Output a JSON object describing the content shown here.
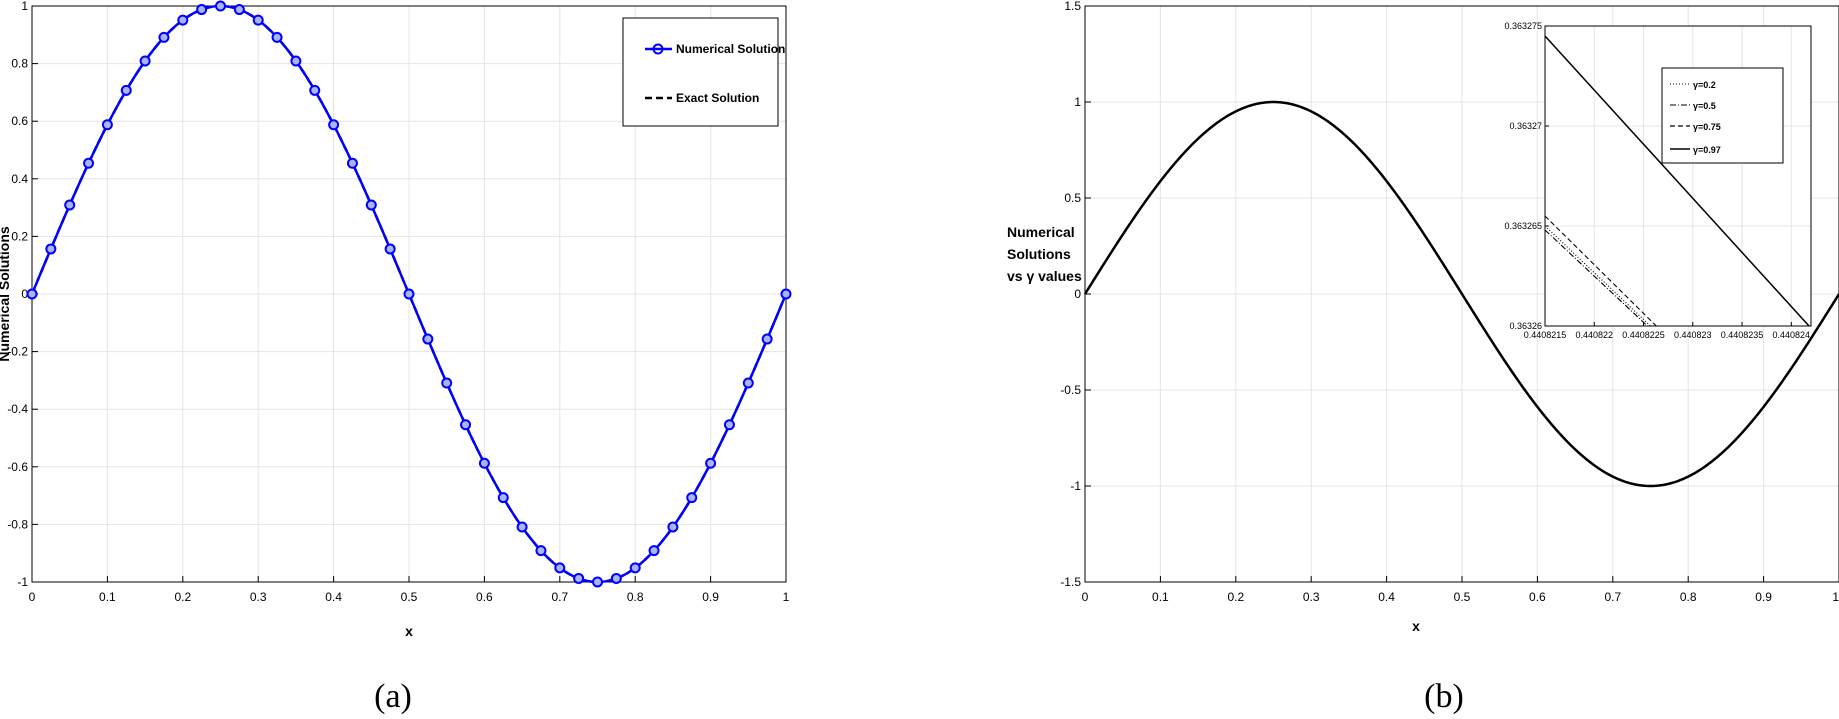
{
  "chart_data": [
    {
      "id": "a",
      "type": "line",
      "caption": "(a)",
      "xlabel": "x",
      "ylabel": "Numerical Solutions",
      "xlim": [
        0,
        1
      ],
      "ylim": [
        -1,
        1
      ],
      "xticks": [
        "0",
        "0.1",
        "0.2",
        "0.3",
        "0.4",
        "0.5",
        "0.6",
        "0.7",
        "0.8",
        "0.9",
        "1"
      ],
      "yticks": [
        "-1",
        "-0.8",
        "-0.6",
        "-0.4",
        "-0.2",
        "0",
        "0.2",
        "0.4",
        "0.6",
        "0.8",
        "1"
      ],
      "grid": true,
      "legend_position": "top-right",
      "function": "sin(2*pi*x)",
      "marker_step": 0.025,
      "series": [
        {
          "name": "Numerical Solution",
          "color": "#0000ff",
          "style": "solid-with-circle-markers"
        },
        {
          "name": "Exact Solution",
          "color": "#000000",
          "style": "dashed"
        }
      ]
    },
    {
      "id": "b",
      "type": "line",
      "caption": "(b)",
      "xlabel": "x",
      "ylabel_lines": [
        "Numerical",
        "Solutions",
        "vs γ values"
      ],
      "xlim": [
        0,
        1
      ],
      "ylim": [
        -1.5,
        1.5
      ],
      "xticks": [
        "0",
        "0.1",
        "0.2",
        "0.3",
        "0.4",
        "0.5",
        "0.6",
        "0.7",
        "0.8",
        "0.9",
        "1"
      ],
      "yticks": [
        "-1.5",
        "-1",
        "-0.5",
        "0",
        "0.5",
        "1",
        "1.5"
      ],
      "grid": true,
      "function": "sin(2*pi*x)",
      "series": [
        {
          "name": "γ=0.2",
          "color": "#000000",
          "style": "dotted"
        },
        {
          "name": "γ=0.5",
          "color": "#000000",
          "style": "dashdot"
        },
        {
          "name": "γ=0.75",
          "color": "#000000",
          "style": "dashed"
        },
        {
          "name": "γ=0.97",
          "color": "#000000",
          "style": "solid"
        }
      ],
      "inset": {
        "type": "line",
        "xlim": [
          0.4408215,
          0.4408242
        ],
        "ylim": [
          0.36326,
          0.363275
        ],
        "xticks": [
          {
            "value": 0.4408215,
            "label": "0.4408215"
          },
          {
            "value": 0.440822,
            "label": "0.440822"
          },
          {
            "value": 0.4408225,
            "label": "0.4408225"
          },
          {
            "value": 0.440823,
            "label": "0.440823"
          },
          {
            "value": 0.4408235,
            "label": "0.4408235"
          },
          {
            "value": 0.440824,
            "label": "0.440824"
          }
        ],
        "yticks": [
          {
            "value": 0.36326,
            "label": "0.36326"
          },
          {
            "value": 0.363265,
            "label": "0.363265"
          },
          {
            "value": 0.36327,
            "label": "0.36327"
          },
          {
            "value": 0.363275,
            "label": "0.363275"
          }
        ],
        "legend_position": "top-right",
        "lines": [
          {
            "name": "γ=0.2",
            "style": "dotted",
            "x": [
              0.4408215,
              0.44082257
            ],
            "y": [
              0.363265,
              0.36326
            ]
          },
          {
            "name": "γ=0.5",
            "style": "dashdot",
            "x": [
              0.4408215,
              0.44082254
            ],
            "y": [
              0.3632648,
              0.36326
            ]
          },
          {
            "name": "γ=0.75",
            "style": "dashed",
            "x": [
              0.4408215,
              0.44082263
            ],
            "y": [
              0.3632655,
              0.36326
            ]
          },
          {
            "name": "γ=0.97",
            "style": "solid",
            "x": [
              0.4408215,
              0.44082418
            ],
            "y": [
              0.3632745,
              0.36326
            ]
          }
        ]
      }
    }
  ]
}
